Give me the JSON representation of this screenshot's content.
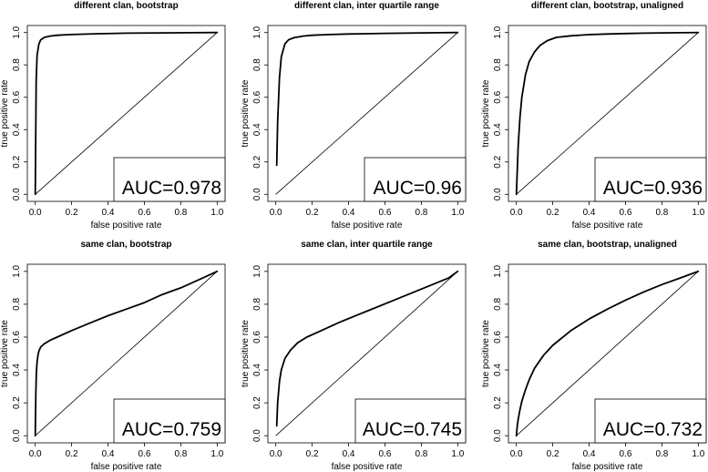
{
  "chart_data": [
    {
      "type": "line",
      "title": "different clan, bootstrap",
      "xlabel": "false positive rate",
      "ylabel": "true positive rate",
      "xlim": [
        0,
        1
      ],
      "ylim": [
        0,
        1
      ],
      "xticks": [
        "0.0",
        "0.2",
        "0.4",
        "0.6",
        "0.8",
        "1.0"
      ],
      "yticks": [
        "0.0",
        "0.2",
        "0.4",
        "0.6",
        "0.8",
        "1.0"
      ],
      "annotation": "AUC=0.978",
      "series": [
        {
          "x": [
            0,
            0.005,
            0.01,
            0.02,
            0.03,
            0.05,
            0.08,
            0.12,
            0.2,
            0.35,
            0.5,
            0.7,
            0.85,
            1.0
          ],
          "y": [
            0,
            0.7,
            0.86,
            0.93,
            0.955,
            0.97,
            0.978,
            0.983,
            0.988,
            0.993,
            0.996,
            0.998,
            0.999,
            1.0
          ]
        }
      ],
      "diagonal": true
    },
    {
      "type": "line",
      "title": "different clan, inter quartile range",
      "xlabel": "false positive rate",
      "ylabel": "true positive rate",
      "xlim": [
        0,
        1
      ],
      "ylim": [
        0,
        1
      ],
      "xticks": [
        "0.0",
        "0.2",
        "0.4",
        "0.6",
        "0.8",
        "1.0"
      ],
      "yticks": [
        "0.0",
        "0.2",
        "0.4",
        "0.6",
        "0.8",
        "1.0"
      ],
      "annotation": "AUC=0.96",
      "series": [
        {
          "x": [
            0.005,
            0.01,
            0.02,
            0.03,
            0.05,
            0.07,
            0.1,
            0.15,
            0.2,
            0.3,
            0.4,
            0.5,
            0.6,
            0.7,
            0.8,
            0.9,
            1.0
          ],
          "y": [
            0.18,
            0.45,
            0.72,
            0.85,
            0.93,
            0.955,
            0.968,
            0.978,
            0.983,
            0.988,
            0.991,
            0.993,
            0.995,
            0.996,
            0.998,
            0.999,
            1.0
          ]
        }
      ],
      "diagonal": true
    },
    {
      "type": "line",
      "title": "different clan, bootstrap, unaligned",
      "xlabel": "false positive rate",
      "ylabel": "true positive rate",
      "xlim": [
        0,
        1
      ],
      "ylim": [
        0,
        1
      ],
      "xticks": [
        "0.0",
        "0.2",
        "0.4",
        "0.6",
        "0.8",
        "1.0"
      ],
      "yticks": [
        "0.0",
        "0.2",
        "0.4",
        "0.6",
        "0.8",
        "1.0"
      ],
      "annotation": "AUC=0.936",
      "series": [
        {
          "x": [
            0,
            0.005,
            0.01,
            0.02,
            0.03,
            0.05,
            0.07,
            0.1,
            0.13,
            0.17,
            0.22,
            0.3,
            0.4,
            0.5,
            0.6,
            0.7,
            0.8,
            0.9,
            1.0
          ],
          "y": [
            0,
            0.15,
            0.3,
            0.48,
            0.6,
            0.74,
            0.82,
            0.88,
            0.92,
            0.95,
            0.97,
            0.98,
            0.987,
            0.991,
            0.994,
            0.996,
            0.998,
            0.999,
            1.0
          ]
        }
      ],
      "diagonal": true
    },
    {
      "type": "line",
      "title": "same clan, bootstrap",
      "xlabel": "false positive rate",
      "ylabel": "true positive rate",
      "xlim": [
        0,
        1
      ],
      "ylim": [
        0,
        1
      ],
      "xticks": [
        "0.0",
        "0.2",
        "0.4",
        "0.6",
        "0.8",
        "1.0"
      ],
      "yticks": [
        "0.0",
        "0.2",
        "0.4",
        "0.6",
        "0.8",
        "1.0"
      ],
      "annotation": "AUC=0.759",
      "series": [
        {
          "x": [
            0,
            0.003,
            0.006,
            0.01,
            0.015,
            0.02,
            0.03,
            0.05,
            0.08,
            0.12,
            0.2,
            0.3,
            0.4,
            0.5,
            0.6,
            0.7,
            0.8,
            0.9,
            1.0
          ],
          "y": [
            0,
            0.25,
            0.38,
            0.45,
            0.49,
            0.515,
            0.54,
            0.56,
            0.58,
            0.6,
            0.64,
            0.685,
            0.73,
            0.77,
            0.81,
            0.86,
            0.9,
            0.95,
            1.0
          ]
        }
      ],
      "diagonal": true
    },
    {
      "type": "line",
      "title": "same clan, inter quartile range",
      "xlabel": "false positive rate",
      "ylabel": "true positive rate",
      "xlim": [
        0,
        1
      ],
      "ylim": [
        0,
        1
      ],
      "xticks": [
        "0.0",
        "0.2",
        "0.4",
        "0.6",
        "0.8",
        "1.0"
      ],
      "yticks": [
        "0.0",
        "0.2",
        "0.4",
        "0.6",
        "0.8",
        "1.0"
      ],
      "annotation": "AUC=0.745",
      "series": [
        {
          "x": [
            0.005,
            0.01,
            0.02,
            0.03,
            0.05,
            0.08,
            0.12,
            0.17,
            0.25,
            0.35,
            0.45,
            0.55,
            0.65,
            0.75,
            0.85,
            0.95,
            1.0
          ],
          "y": [
            0.06,
            0.2,
            0.33,
            0.4,
            0.47,
            0.52,
            0.565,
            0.6,
            0.64,
            0.69,
            0.735,
            0.78,
            0.825,
            0.87,
            0.915,
            0.96,
            1.0
          ]
        }
      ],
      "diagonal": true
    },
    {
      "type": "line",
      "title": "same clan, bootstrap, unaligned",
      "xlabel": "false positive rate",
      "ylabel": "true positive rate",
      "xlim": [
        0,
        1
      ],
      "ylim": [
        0,
        1
      ],
      "xticks": [
        "0.0",
        "0.2",
        "0.4",
        "0.6",
        "0.8",
        "1.0"
      ],
      "yticks": [
        "0.0",
        "0.2",
        "0.4",
        "0.6",
        "0.8",
        "1.0"
      ],
      "annotation": "AUC=0.732",
      "series": [
        {
          "x": [
            0,
            0.005,
            0.01,
            0.02,
            0.03,
            0.05,
            0.07,
            0.1,
            0.15,
            0.2,
            0.3,
            0.4,
            0.5,
            0.6,
            0.7,
            0.8,
            0.9,
            1.0
          ],
          "y": [
            0,
            0.06,
            0.1,
            0.16,
            0.21,
            0.28,
            0.34,
            0.41,
            0.49,
            0.55,
            0.64,
            0.71,
            0.77,
            0.825,
            0.875,
            0.92,
            0.96,
            1.0
          ]
        }
      ],
      "diagonal": true
    }
  ]
}
